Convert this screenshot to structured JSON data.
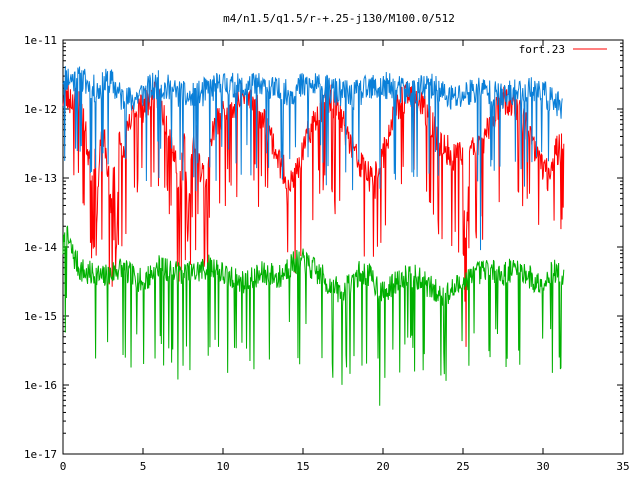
{
  "chart_data": {
    "type": "line",
    "title": "m4/n1.5/q1.5/r-+.25-j130/M100.0/512",
    "xlabel": "",
    "ylabel": "",
    "xlim": [
      0,
      35
    ],
    "ylim": [
      1e-17,
      1e-11
    ],
    "yscale": "log",
    "grid": false,
    "legend_position": "top-right",
    "x_ticks": [
      0,
      5,
      10,
      15,
      20,
      25,
      30,
      35
    ],
    "x_tick_labels": [
      "0",
      "5",
      "10",
      "15",
      "20",
      "25",
      "30",
      "35"
    ],
    "y_ticks": [
      1e-17,
      1e-16,
      1e-15,
      1e-14,
      1e-13,
      1e-12,
      1e-11
    ],
    "y_tick_labels": [
      "1e-17",
      "1e-16",
      "1e-15",
      "1e-14",
      "1e-13",
      "1e-12",
      "1e-11"
    ],
    "series": [
      {
        "name": "fort.23",
        "color": "#ff0000",
        "x": [
          0.0,
          0.5,
          1.0,
          1.3,
          1.5,
          1.8,
          2.0,
          2.1,
          2.3,
          2.5,
          2.8,
          3.0,
          3.2,
          3.3,
          3.5,
          3.8,
          4.0,
          4.3,
          4.6,
          5.0,
          5.3,
          5.6,
          6.0,
          6.3,
          6.6,
          7.0,
          7.3,
          7.6,
          7.8,
          8.0,
          8.3,
          8.6,
          9.0,
          9.3,
          9.6,
          10.0,
          10.3,
          10.6,
          11.0,
          11.3,
          11.6,
          12.0,
          12.3,
          12.6,
          13.0,
          13.3,
          13.6,
          14.0,
          14.3,
          14.6,
          15.0,
          15.3,
          15.6,
          16.0,
          16.3,
          16.6,
          17.0,
          17.3,
          17.6,
          18.0,
          18.3,
          18.6,
          19.0,
          19.3,
          19.6,
          20.0,
          20.3,
          20.6,
          21.0,
          21.3,
          21.6,
          22.0,
          22.3,
          22.6,
          23.0,
          23.3,
          23.6,
          24.0,
          24.3,
          24.6,
          25.0,
          25.2,
          25.4,
          25.7,
          26.0,
          26.3,
          26.6,
          27.0,
          27.3,
          27.6,
          28.0,
          28.3,
          28.6,
          29.0,
          29.3,
          29.6,
          30.0,
          30.3,
          30.6,
          31.0,
          31.3
        ],
        "y": [
          1.5e-12,
          1.4e-12,
          1.2e-12,
          6e-13,
          3e-13,
          1e-13,
          3e-13,
          2.5e-14,
          2e-13,
          4e-13,
          1.5e-13,
          3e-14,
          2e-13,
          5e-15,
          3e-13,
          2e-13,
          4e-13,
          7e-13,
          1e-12,
          1e-12,
          1.3e-12,
          1.4e-12,
          1.5e-12,
          8e-13,
          5e-13,
          2e-13,
          7e-14,
          3e-13,
          2e-14,
          1.5e-13,
          5e-13,
          1.2e-13,
          1e-13,
          4e-13,
          6e-13,
          8e-13,
          1.2e-12,
          9e-13,
          1.3e-12,
          1.6e-12,
          1.4e-12,
          1.2e-12,
          8e-13,
          6e-13,
          4e-13,
          2.5e-13,
          1.5e-13,
          1e-13,
          8e-14,
          1.2e-13,
          2e-13,
          4e-13,
          6e-13,
          9e-13,
          1.2e-12,
          1.4e-12,
          1.1e-12,
          8e-13,
          5e-13,
          3e-13,
          2e-13,
          1.5e-13,
          1.2e-13,
          8e-14,
          1.2e-13,
          2e-13,
          4e-13,
          7e-13,
          1e-12,
          1.3e-12,
          1.5e-12,
          1.4e-12,
          1.2e-12,
          9e-13,
          6e-13,
          4e-13,
          3e-13,
          2.5e-13,
          2e-13,
          2e-13,
          2e-13,
          8e-15,
          2e-13,
          3e-13,
          2.5e-13,
          3e-13,
          5e-13,
          8e-13,
          1.2e-12,
          1.3e-12,
          1.2e-12,
          1e-12,
          8e-13,
          5e-13,
          3e-13,
          2e-13,
          1.5e-13,
          1e-13,
          2e-13,
          2.5e-13,
          3e-13
        ],
        "dips": [
          [
            2.1,
            2.2e-14
          ],
          [
            3.3,
            4.5e-15
          ],
          [
            7.3,
            2e-14
          ],
          [
            7.8,
            1.2e-14
          ],
          [
            8.3,
            9e-15
          ],
          [
            9.0,
            1.5e-14
          ],
          [
            14.0,
            4e-14
          ],
          [
            17.0,
            3e-14
          ],
          [
            19.5,
            5e-14
          ],
          [
            25.0,
            8e-15
          ],
          [
            29.0,
            5e-14
          ],
          [
            31.2,
            2.5e-14
          ]
        ],
        "noise": 0.5,
        "seed": 23
      },
      {
        "name": "",
        "color": "#0a7fd8",
        "x": [
          0.0,
          0.4,
          0.8,
          1.2,
          1.6,
          2.0,
          2.4,
          2.8,
          3.2,
          3.6,
          4.0,
          4.4,
          4.8,
          5.2,
          5.6,
          6.0,
          6.4,
          6.8,
          7.2,
          7.6,
          8.0,
          8.4,
          8.8,
          9.2,
          9.6,
          10.0,
          10.4,
          10.8,
          11.2,
          11.6,
          12.0,
          12.4,
          12.8,
          13.2,
          13.6,
          14.0,
          14.4,
          14.8,
          15.2,
          15.6,
          16.0,
          16.4,
          16.8,
          17.2,
          17.6,
          18.0,
          18.4,
          18.8,
          19.2,
          19.6,
          20.0,
          20.4,
          20.8,
          21.2,
          21.6,
          22.0,
          22.4,
          22.8,
          23.2,
          23.6,
          24.0,
          24.4,
          24.8,
          25.2,
          25.6,
          26.0,
          26.4,
          26.8,
          27.2,
          27.6,
          28.0,
          28.4,
          28.8,
          29.2,
          29.6,
          30.0,
          30.4,
          30.8,
          31.2
        ],
        "y": [
          3e-12,
          2.8e-12,
          2.6e-12,
          2.5e-12,
          2.3e-12,
          1.8e-12,
          2e-12,
          2.5e-12,
          2.2e-12,
          1.5e-12,
          1.3e-12,
          1.4e-12,
          1.6e-12,
          1.8e-12,
          2e-12,
          2.2e-12,
          2e-12,
          1.8e-12,
          1.6e-12,
          1.5e-12,
          1.4e-12,
          1.5e-12,
          1.7e-12,
          1.9e-12,
          2e-12,
          2.2e-12,
          2.1e-12,
          2e-12,
          1.9e-12,
          2e-12,
          2.1e-12,
          2e-12,
          1.9e-12,
          1.8e-12,
          1.7e-12,
          1.6e-12,
          1.8e-12,
          2e-12,
          2.2e-12,
          2.1e-12,
          2e-12,
          1.9e-12,
          1.8e-12,
          1.7e-12,
          1.6e-12,
          1.5e-12,
          1.6e-12,
          1.8e-12,
          1.9e-12,
          2e-12,
          2.1e-12,
          2e-12,
          1.9e-12,
          1.8e-12,
          1.7e-12,
          1.8e-12,
          1.9e-12,
          2e-12,
          1.9e-12,
          1.7e-12,
          1.5e-12,
          1.4e-12,
          1.5e-12,
          1.7e-12,
          1.8e-12,
          1.9e-12,
          1.8e-12,
          1.6e-12,
          1.5e-12,
          1.4e-12,
          1.6e-12,
          1.7e-12,
          1.8e-12,
          1.9e-12,
          1.8e-12,
          1.6e-12,
          1.4e-12,
          1.2e-12,
          9e-13
        ],
        "dips": [
          [
            6.0,
            1e-13
          ],
          [
            11.5,
            3e-13
          ],
          [
            15.3,
            2e-13
          ],
          [
            19.8,
            7e-14
          ],
          [
            26.1,
            9e-15
          ],
          [
            29.6,
            2e-13
          ]
        ],
        "noise": 0.45,
        "seed": 11
      },
      {
        "name": "",
        "color": "#00b000",
        "x": [
          0.0,
          0.3,
          0.6,
          1.0,
          1.5,
          2.0,
          2.5,
          3.0,
          3.5,
          4.0,
          4.5,
          5.0,
          5.5,
          6.0,
          6.5,
          7.0,
          7.5,
          8.0,
          8.5,
          9.0,
          9.5,
          10.0,
          10.5,
          11.0,
          11.5,
          12.0,
          12.5,
          13.0,
          13.5,
          14.0,
          14.5,
          15.0,
          15.5,
          16.0,
          16.5,
          17.0,
          17.5,
          18.0,
          18.5,
          19.0,
          19.5,
          20.0,
          20.5,
          21.0,
          21.5,
          22.0,
          22.5,
          23.0,
          23.5,
          24.0,
          24.5,
          25.0,
          25.5,
          26.0,
          26.5,
          27.0,
          27.5,
          28.0,
          28.5,
          29.0,
          29.5,
          30.0,
          30.5,
          31.0,
          31.3
        ],
        "y": [
          1e-14,
          1.3e-14,
          8e-15,
          5e-15,
          4e-15,
          4e-15,
          3.5e-15,
          4e-15,
          5e-15,
          4e-15,
          3.5e-15,
          3e-15,
          4e-15,
          5e-15,
          4.5e-15,
          4e-15,
          4e-15,
          4e-15,
          4.5e-15,
          5e-15,
          5e-15,
          4e-15,
          3.5e-15,
          3e-15,
          3e-15,
          3.5e-15,
          4e-15,
          4e-15,
          3.5e-15,
          5e-15,
          6e-15,
          6e-15,
          5e-15,
          4e-15,
          3e-15,
          2.5e-15,
          2e-15,
          3e-15,
          4e-15,
          4e-15,
          3e-15,
          2e-15,
          2.5e-15,
          3.5e-15,
          4e-15,
          3.5e-15,
          3e-15,
          2.5e-15,
          2e-15,
          2e-15,
          2.5e-15,
          3e-15,
          3.5e-15,
          4e-15,
          4.5e-15,
          4e-15,
          4e-15,
          4.5e-15,
          5e-15,
          4e-15,
          3e-15,
          3e-15,
          4e-15,
          4.5e-15,
          3e-15
        ],
        "dips": [
          [
            7.2,
            1.2e-16
          ],
          [
            10.3,
            1.5e-16
          ],
          [
            14.8,
            2e-16
          ],
          [
            19.8,
            5e-17
          ],
          [
            23.8,
            3e-16
          ],
          [
            30.6,
            1.5e-16
          ],
          [
            31.0,
            2.5e-16
          ]
        ],
        "noise": 0.4,
        "seed": 7
      }
    ]
  }
}
